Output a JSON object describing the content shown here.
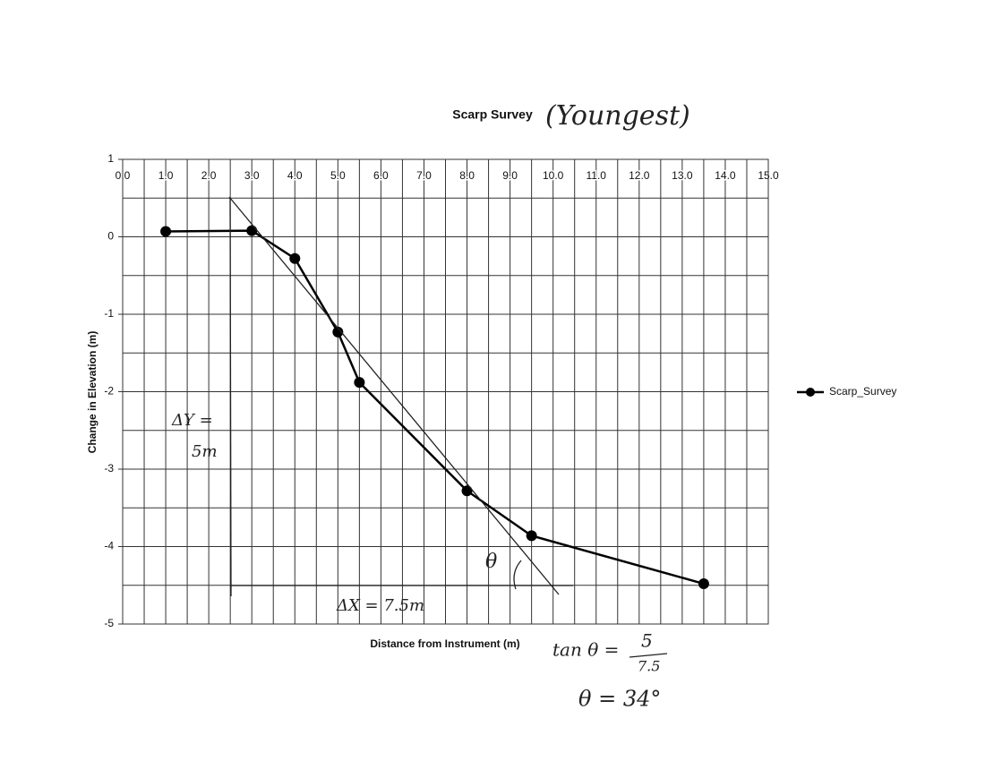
{
  "chart_data": {
    "type": "line",
    "title": "Scarp Survey",
    "x_label": "Distance from Instrument (m)",
    "y_label": "Change in Elevation (m)",
    "x": [
      1.0,
      3.0,
      4.0,
      5.0,
      5.5,
      8.0,
      9.5,
      13.5
    ],
    "series": [
      {
        "name": "Scarp_Survey",
        "color": "#000000",
        "values": [
          0.07,
          0.08,
          -0.28,
          -1.23,
          -1.88,
          -3.28,
          -3.86,
          -4.48
        ]
      }
    ],
    "xlim": [
      0,
      15
    ],
    "ylim": [
      -5,
      1
    ],
    "xticks": [
      {
        "value": 0,
        "label": "0.0"
      },
      {
        "value": 1,
        "label": "1.0"
      },
      {
        "value": 2,
        "label": "2.0"
      },
      {
        "value": 3,
        "label": "3.0"
      },
      {
        "value": 4,
        "label": "4.0"
      },
      {
        "value": 5,
        "label": "5.0"
      },
      {
        "value": 6,
        "label": "6.0"
      },
      {
        "value": 7,
        "label": "7.0"
      },
      {
        "value": 8,
        "label": "8.0"
      },
      {
        "value": 9,
        "label": "9.0"
      },
      {
        "value": 10,
        "label": "10.0"
      },
      {
        "value": 11,
        "label": "11.0"
      },
      {
        "value": 12,
        "label": "12.0"
      },
      {
        "value": 13,
        "label": "13.0"
      },
      {
        "value": 14,
        "label": "14.0"
      },
      {
        "value": 15,
        "label": "15.0"
      }
    ],
    "yticks": [
      1,
      0,
      -1,
      -2,
      -3,
      -4,
      -5
    ],
    "grid": true,
    "legend": "right",
    "annotations": [
      "(Youngest)",
      "ΔY =",
      "5m",
      "ΔX = 7.5m",
      "θ",
      "tan θ =",
      "5",
      "7.5",
      "θ = 34°"
    ]
  }
}
